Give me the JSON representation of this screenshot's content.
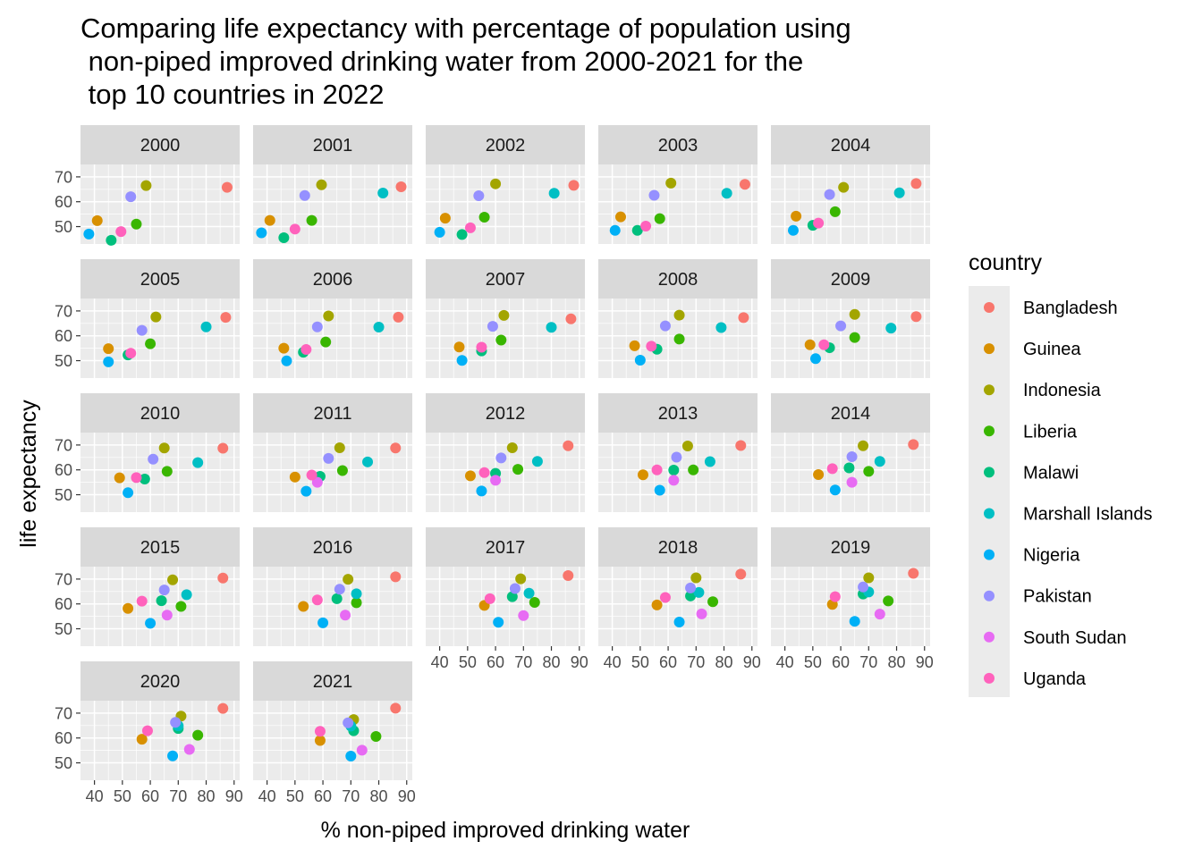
{
  "chart_data": {
    "type": "scatter",
    "facet_by": "year",
    "title_lines": [
      "Comparing life expectancy with percentage of population using",
      " non-piped improved drinking water from 2000-2021 for the",
      " top 10 countries in 2022"
    ],
    "xlabel": "% non-piped improved drinking water",
    "ylabel": "life expectancy",
    "x_ticks": [
      40,
      50,
      60,
      70,
      80,
      90
    ],
    "y_ticks": [
      50,
      60,
      70
    ],
    "xlim": [
      35,
      92
    ],
    "ylim": [
      43,
      75
    ],
    "grid": true,
    "legend": {
      "title": "country",
      "position": "right"
    },
    "countries": [
      "Bangladesh",
      "Guinea",
      "Indonesia",
      "Liberia",
      "Malawi",
      "Marshall Islands",
      "Nigeria",
      "Pakistan",
      "South Sudan",
      "Uganda"
    ],
    "colors": [
      "#F8766D",
      "#D89000",
      "#A3A500",
      "#39B600",
      "#00BF7D",
      "#00BFC4",
      "#00B0F6",
      "#9590FF",
      "#E76BF3",
      "#FF62BC"
    ],
    "facets": [
      {
        "year": "2000",
        "points": [
          [
            87.5,
            65.8
          ],
          [
            41,
            52.4
          ],
          [
            58.5,
            66.5
          ],
          [
            55,
            51
          ],
          [
            46,
            44.5
          ],
          null,
          [
            38,
            47
          ],
          [
            53,
            62
          ],
          null,
          [
            49.5,
            48
          ]
        ]
      },
      {
        "year": "2001",
        "points": [
          [
            88,
            66
          ],
          [
            41,
            52.5
          ],
          [
            59.5,
            66.8
          ],
          [
            56,
            52.5
          ],
          [
            46,
            45.5
          ],
          [
            81.5,
            63.5
          ],
          [
            38,
            47.5
          ],
          [
            53.5,
            62.5
          ],
          null,
          [
            50,
            49
          ]
        ]
      },
      {
        "year": "2002",
        "points": [
          [
            88,
            66.6
          ],
          [
            42,
            53.4
          ],
          [
            60,
            67.2
          ],
          [
            56,
            53.8
          ],
          [
            48,
            46.8
          ],
          [
            81,
            63.4
          ],
          [
            40,
            47.7
          ],
          [
            54,
            62.4
          ],
          null,
          [
            51,
            49.5
          ]
        ]
      },
      {
        "year": "2003",
        "points": [
          [
            87.5,
            67
          ],
          [
            43,
            53.9
          ],
          [
            61,
            67.5
          ],
          [
            57,
            53.2
          ],
          [
            49,
            48.5
          ],
          [
            81,
            63.4
          ],
          [
            41,
            48.5
          ],
          [
            55,
            62.6
          ],
          null,
          [
            52,
            50.2
          ]
        ]
      },
      {
        "year": "2004",
        "points": [
          [
            87,
            67.3
          ],
          [
            44,
            54.2
          ],
          [
            61,
            65.8
          ],
          [
            58,
            56
          ],
          [
            50,
            50.5
          ],
          [
            81,
            63.6
          ],
          [
            43,
            48.5
          ],
          [
            56,
            62.9
          ],
          null,
          [
            52,
            51.4
          ]
        ]
      },
      {
        "year": "2005",
        "points": [
          [
            87,
            67.4
          ],
          [
            45,
            54.8
          ],
          [
            62,
            67.6
          ],
          [
            60,
            56.8
          ],
          [
            52,
            52.3
          ],
          [
            80,
            63.6
          ],
          [
            45,
            49.5
          ],
          [
            57,
            62.2
          ],
          null,
          [
            53,
            53
          ]
        ]
      },
      {
        "year": "2006",
        "points": [
          [
            87,
            67.5
          ],
          [
            46,
            55
          ],
          [
            62,
            68
          ],
          [
            61,
            57.5
          ],
          [
            53,
            53.4
          ],
          [
            80,
            63.5
          ],
          [
            47,
            49.9
          ],
          [
            58,
            63.6
          ],
          null,
          [
            54,
            54.5
          ]
        ]
      },
      {
        "year": "2007",
        "points": [
          [
            87,
            66.8
          ],
          [
            47,
            55.5
          ],
          [
            63,
            68.2
          ],
          [
            62,
            58.3
          ],
          [
            55,
            53.9
          ],
          [
            80,
            63.4
          ],
          [
            48,
            50.1
          ],
          [
            59,
            63.8
          ],
          null,
          [
            55,
            55.4
          ]
        ]
      },
      {
        "year": "2008",
        "points": [
          [
            87,
            67.3
          ],
          [
            48,
            56
          ],
          [
            64,
            68.3
          ],
          [
            64,
            58.7
          ],
          [
            56,
            54.6
          ],
          [
            79,
            63.3
          ],
          [
            50,
            50.2
          ],
          [
            59,
            64
          ],
          null,
          [
            54,
            55.8
          ]
        ]
      },
      {
        "year": "2009",
        "points": [
          [
            87,
            67.7
          ],
          [
            49,
            56.4
          ],
          [
            65,
            68.6
          ],
          [
            65,
            59.3
          ],
          [
            56,
            55.2
          ],
          [
            78,
            63.1
          ],
          [
            51,
            50.8
          ],
          [
            60,
            64
          ],
          null,
          [
            54,
            56.4
          ]
        ]
      },
      {
        "year": "2010",
        "points": [
          [
            86,
            68.7
          ],
          [
            49,
            56.8
          ],
          [
            65,
            68.8
          ],
          [
            66,
            59.4
          ],
          [
            58,
            56.3
          ],
          [
            77,
            62.9
          ],
          [
            52,
            50.8
          ],
          [
            61,
            64.3
          ],
          null,
          [
            55,
            56.9
          ]
        ]
      },
      {
        "year": "2011",
        "points": [
          [
            86,
            68.8
          ],
          [
            50,
            57.1
          ],
          [
            66,
            68.9
          ],
          [
            67,
            59.7
          ],
          [
            59,
            57.4
          ],
          [
            76,
            63.2
          ],
          [
            54,
            51.4
          ],
          [
            62,
            64.6
          ],
          [
            58,
            55
          ],
          [
            56,
            57.9
          ]
        ]
      },
      {
        "year": "2012",
        "points": [
          [
            86,
            69.7
          ],
          [
            51,
            57.6
          ],
          [
            66,
            68.9
          ],
          [
            68,
            60.2
          ],
          [
            60,
            58.6
          ],
          [
            75,
            63.4
          ],
          [
            55,
            51.5
          ],
          [
            62,
            64.8
          ],
          [
            60,
            55.8
          ],
          [
            56,
            58.9
          ]
        ]
      },
      {
        "year": "2013",
        "points": [
          [
            86,
            69.8
          ],
          [
            51,
            58
          ],
          [
            67,
            69.6
          ],
          [
            69,
            60
          ],
          [
            62,
            59.9
          ],
          [
            75,
            63.3
          ],
          [
            57,
            51.8
          ],
          [
            63,
            65.1
          ],
          [
            62,
            55.8
          ],
          [
            56,
            60
          ]
        ]
      },
      {
        "year": "2014",
        "points": [
          [
            86,
            70.2
          ],
          [
            52,
            58.1
          ],
          [
            68,
            69.7
          ],
          [
            70,
            59.4
          ],
          [
            63,
            60.8
          ],
          [
            74,
            63.4
          ],
          [
            58,
            51.9
          ],
          [
            64,
            65.3
          ],
          [
            64,
            55
          ],
          [
            57,
            60.5
          ]
        ]
      },
      {
        "year": "2015",
        "points": [
          [
            86,
            70.4
          ],
          [
            52,
            58.2
          ],
          [
            68,
            69.7
          ],
          [
            71,
            59
          ],
          [
            64,
            61.3
          ],
          [
            73,
            63.7
          ],
          [
            60,
            52.2
          ],
          [
            65,
            65.6
          ],
          [
            66,
            55.5
          ],
          [
            57,
            61.1
          ]
        ]
      },
      {
        "year": "2016",
        "points": [
          [
            86,
            70.9
          ],
          [
            53,
            59
          ],
          [
            69,
            69.9
          ],
          [
            72,
            60.5
          ],
          [
            65,
            62.1
          ],
          [
            72,
            64.1
          ],
          [
            60,
            52.4
          ],
          [
            66,
            65.9
          ],
          [
            68,
            55.5
          ],
          [
            58,
            61.6
          ]
        ]
      },
      {
        "year": "2017",
        "points": [
          [
            86,
            71.4
          ],
          [
            56,
            59.4
          ],
          [
            69,
            70.1
          ],
          [
            74,
            60.6
          ],
          [
            66,
            62.9
          ],
          [
            72,
            64.3
          ],
          [
            61,
            52.6
          ],
          [
            67,
            66.2
          ],
          [
            70,
            55.3
          ],
          [
            58,
            62.1
          ]
        ]
      },
      {
        "year": "2018",
        "points": [
          [
            86,
            72
          ],
          [
            56,
            59.6
          ],
          [
            70,
            70.5
          ],
          [
            76,
            60.9
          ],
          [
            68,
            63.2
          ],
          [
            71,
            64.6
          ],
          [
            64,
            52.7
          ],
          [
            68,
            66.4
          ],
          [
            72,
            56
          ],
          [
            59,
            62.6
          ]
        ]
      },
      {
        "year": "2019",
        "points": [
          [
            86,
            72.3
          ],
          [
            57,
            59.8
          ],
          [
            70,
            70.5
          ],
          [
            77,
            61.2
          ],
          [
            68,
            64
          ],
          [
            70,
            64.8
          ],
          [
            65,
            53
          ],
          [
            68,
            66.8
          ],
          [
            74,
            55.9
          ],
          [
            58,
            62.9
          ]
        ]
      },
      {
        "year": "2020",
        "points": [
          [
            86,
            71.9
          ],
          [
            57,
            59.5
          ],
          [
            71,
            68.8
          ],
          [
            77,
            61.1
          ],
          [
            70,
            63.8
          ],
          [
            70,
            64.9
          ],
          [
            68,
            52.8
          ],
          [
            69,
            66.3
          ],
          [
            74,
            55.4
          ],
          [
            59,
            62.9
          ]
        ]
      },
      {
        "year": "2021",
        "points": [
          [
            86,
            72
          ],
          [
            59,
            59
          ],
          [
            71,
            67.4
          ],
          [
            79,
            60.6
          ],
          [
            71,
            62.9
          ],
          [
            70,
            64.8
          ],
          [
            70,
            52.7
          ],
          [
            69,
            66.1
          ],
          [
            74,
            55.1
          ],
          [
            59,
            62.7
          ]
        ]
      }
    ]
  }
}
